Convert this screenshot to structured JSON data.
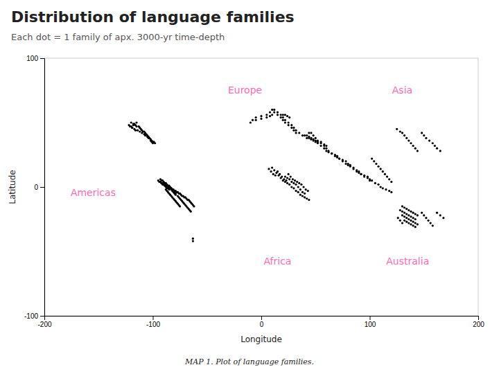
{
  "chart_data": {
    "type": "scatter",
    "title": "Distribution of language families",
    "subtitle": "Each dot = 1 family of apx. 3000-yr time-depth",
    "xlabel": "Longitude",
    "ylabel": "Latitude",
    "caption": "MAP 1. Plot of language families.",
    "xlim": [
      -200,
      200
    ],
    "ylim": [
      -100,
      100
    ],
    "xticks": [
      -200,
      -100,
      0,
      100,
      200
    ],
    "yticks": [
      -100,
      0,
      100
    ],
    "color": "#000000",
    "annotations": [
      {
        "text": "Europe",
        "x": -15,
        "y": 75,
        "color": "#FF69B4"
      },
      {
        "text": "Asia",
        "x": 130,
        "y": 75,
        "color": "#FF69B4"
      },
      {
        "text": "Americas",
        "x": -155,
        "y": -5,
        "color": "#FF69B4"
      },
      {
        "text": "Africa",
        "x": 15,
        "y": -58,
        "color": "#FF69B4"
      },
      {
        "text": "Australia",
        "x": 135,
        "y": -58,
        "color": "#FF69B4"
      }
    ],
    "x": [
      -120,
      -118,
      -116,
      -115,
      -113,
      -112,
      -111,
      -110,
      -109,
      -108,
      -107,
      -106,
      -105,
      -104,
      -103,
      -102,
      -101,
      -100,
      -99,
      -98,
      -120,
      -119,
      -117,
      -116,
      -114,
      -112,
      -110,
      -108,
      -107,
      -105,
      -104,
      -102,
      -101,
      -100,
      -115,
      -117,
      -118,
      -122,
      -121,
      -119,
      -95,
      -94,
      -93,
      -92,
      -91,
      -90,
      -89,
      -88,
      -87,
      -86,
      -85,
      -84,
      -83,
      -82,
      -81,
      -80,
      -79,
      -78,
      -77,
      -76,
      -75,
      -74,
      -73,
      -72,
      -71,
      -70,
      -69,
      -68,
      -67,
      -66,
      -65,
      -64,
      -63,
      -62,
      -93,
      -92,
      -91,
      -90,
      -89,
      -88,
      -87,
      -86,
      -85,
      -84,
      -83,
      -82,
      -80,
      -79,
      -93,
      -92,
      -91,
      -90,
      -89,
      -88,
      -87,
      -86,
      -85,
      -83,
      -82,
      -81,
      -80,
      -79,
      -77,
      -76,
      -75,
      -74,
      -73,
      -72,
      -71,
      -70,
      -69,
      -68,
      -67,
      -66,
      -65,
      -88,
      -87,
      -86,
      -85,
      -84,
      -83,
      -82,
      -81,
      -80,
      -79,
      -78,
      -77,
      -76,
      -75,
      -63,
      -63,
      -10,
      -8,
      -5,
      0,
      5,
      8,
      10,
      12,
      15,
      18,
      20,
      22,
      25,
      28,
      30,
      32,
      35,
      38,
      -5,
      0,
      5,
      8,
      10,
      12,
      15,
      18,
      20,
      22,
      25,
      28,
      30,
      32,
      20,
      22,
      24,
      26,
      42,
      44,
      46,
      48,
      50,
      52,
      55,
      58,
      60,
      62,
      65,
      68,
      70,
      72,
      75,
      78,
      80,
      82,
      85,
      88,
      90,
      92,
      95,
      98,
      100,
      40,
      42,
      44,
      46,
      48,
      50,
      52,
      55,
      58,
      60,
      62,
      65,
      68,
      70,
      72,
      75,
      78,
      80,
      82,
      85,
      88,
      90,
      92,
      95,
      98,
      100,
      102,
      105,
      108,
      110,
      112,
      115,
      118,
      120,
      44,
      46,
      48,
      50,
      52,
      55,
      58,
      60,
      125,
      128,
      130,
      132,
      134,
      136,
      138,
      140,
      142,
      144,
      148,
      150,
      152,
      155,
      158,
      160,
      162,
      165,
      102,
      104,
      106,
      108,
      110,
      112,
      114,
      116,
      118,
      120,
      25,
      27,
      29,
      31,
      33,
      35,
      37,
      39,
      41,
      43,
      22,
      24,
      26,
      28,
      30,
      32,
      34,
      36,
      38,
      40,
      20,
      22,
      24,
      26,
      28,
      30,
      32,
      34,
      36,
      38,
      15,
      17,
      19,
      21,
      23,
      10,
      12,
      14,
      16,
      18,
      7,
      9,
      11,
      13,
      40,
      42,
      44,
      130,
      132,
      134,
      136,
      138,
      140,
      142,
      144,
      128,
      130,
      132,
      134,
      136,
      138,
      140,
      142,
      130,
      132,
      134,
      136,
      138,
      140,
      142,
      144,
      132,
      134,
      136,
      138,
      140,
      142,
      148,
      150,
      152,
      154,
      156,
      158,
      126,
      128,
      130,
      162,
      165,
      168
    ],
    "values": [
      50,
      49,
      48,
      47,
      47,
      46,
      45,
      44,
      43,
      43,
      42,
      41,
      40,
      39,
      38,
      37,
      36,
      35,
      35,
      34,
      47,
      46,
      45,
      44,
      44,
      43,
      42,
      41,
      40,
      39,
      38,
      36,
      35,
      34,
      50,
      49,
      48,
      48,
      47,
      46,
      5,
      4,
      4,
      3,
      3,
      2,
      2,
      1,
      1,
      0,
      0,
      -1,
      -1,
      -2,
      -2,
      -3,
      -3,
      -4,
      -4,
      -5,
      -5,
      -6,
      -7,
      -7,
      -8,
      -8,
      -9,
      -10,
      -10,
      -11,
      -12,
      -13,
      -14,
      -15,
      6,
      5,
      5,
      4,
      3,
      3,
      2,
      1,
      1,
      0,
      -1,
      -2,
      -4,
      -5,
      4,
      3,
      2,
      2,
      1,
      0,
      -1,
      -1,
      -2,
      -2,
      -3,
      -4,
      -5,
      -6,
      -7,
      -8,
      -9,
      -10,
      -11,
      -12,
      -13,
      -14,
      -15,
      -16,
      -17,
      -18,
      -19,
      -2,
      -3,
      -4,
      -5,
      -6,
      -7,
      -8,
      -9,
      -10,
      -11,
      -12,
      -13,
      -14,
      -15,
      -40,
      -42,
      50,
      52,
      54,
      55,
      56,
      58,
      60,
      60,
      58,
      56,
      54,
      52,
      50,
      48,
      46,
      44,
      42,
      40,
      52,
      53,
      54,
      55,
      56,
      58,
      56,
      54,
      52,
      50,
      48,
      46,
      44,
      42,
      56,
      56,
      55,
      54,
      38,
      38,
      37,
      36,
      35,
      34,
      32,
      30,
      28,
      27,
      26,
      24,
      23,
      22,
      20,
      18,
      17,
      16,
      14,
      12,
      11,
      10,
      8,
      7,
      5,
      40,
      40,
      39,
      38,
      37,
      36,
      35,
      34,
      32,
      30,
      28,
      26,
      25,
      24,
      22,
      21,
      20,
      18,
      17,
      15,
      13,
      12,
      10,
      9,
      8,
      6,
      5,
      3,
      2,
      0,
      -1,
      -2,
      -3,
      -4,
      42,
      42,
      40,
      38,
      36,
      35,
      33,
      32,
      45,
      43,
      42,
      40,
      38,
      36,
      34,
      32,
      30,
      28,
      42,
      40,
      38,
      36,
      34,
      32,
      30,
      28,
      22,
      20,
      18,
      16,
      14,
      12,
      10,
      8,
      6,
      4,
      10,
      8,
      6,
      5,
      4,
      3,
      2,
      0,
      -2,
      -3,
      8,
      7,
      6,
      4,
      3,
      2,
      0,
      -2,
      -4,
      -5,
      5,
      4,
      3,
      2,
      0,
      -1,
      -3,
      -4,
      -6,
      -7,
      12,
      10,
      8,
      6,
      5,
      15,
      13,
      11,
      9,
      7,
      14,
      12,
      10,
      9,
      -8,
      -9,
      -10,
      -15,
      -16,
      -17,
      -18,
      -19,
      -20,
      -21,
      -22,
      -18,
      -19,
      -20,
      -21,
      -22,
      -23,
      -24,
      -25,
      -22,
      -23,
      -24,
      -25,
      -26,
      -27,
      -28,
      -29,
      -26,
      -27,
      -28,
      -29,
      -30,
      -31,
      -20,
      -22,
      -24,
      -26,
      -28,
      -30,
      -24,
      -26,
      -28,
      -20,
      -22,
      -24
    ]
  }
}
